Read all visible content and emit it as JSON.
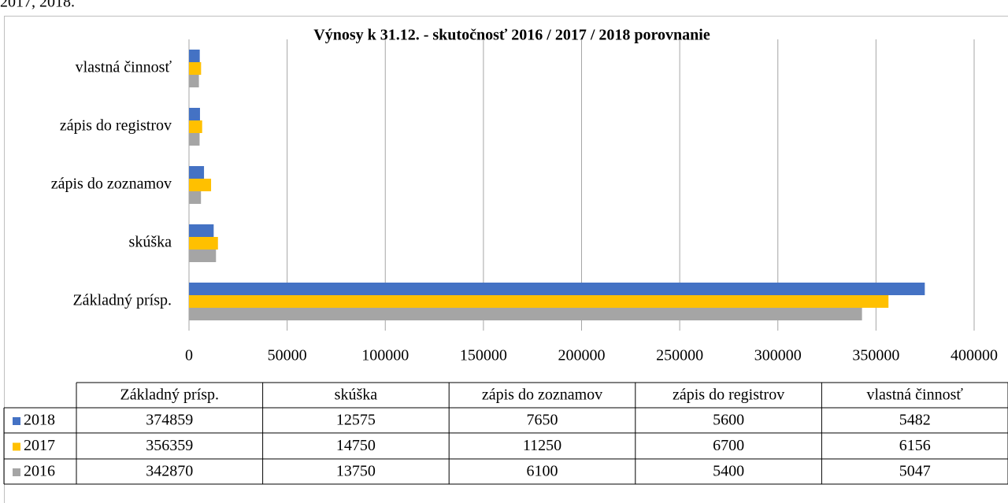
{
  "caption": "2017, 2018.",
  "chart_data": {
    "type": "bar",
    "orientation": "horizontal",
    "title": "Výnosy k 31.12. - skutočnosť 2016 / 2017 / 2018  porovnanie",
    "categories": [
      "Základný prísp.",
      "skúška",
      "zápis do zoznamov",
      "zápis do registrov",
      "vlastná činnosť"
    ],
    "series": [
      {
        "name": "2018",
        "color": "#4472c4",
        "values": [
          374859,
          12575,
          7650,
          5600,
          5482
        ]
      },
      {
        "name": "2017",
        "color": "#ffc000",
        "values": [
          356359,
          14750,
          11250,
          6700,
          6156
        ]
      },
      {
        "name": "2016",
        "color": "#a5a5a5",
        "values": [
          342870,
          13750,
          6100,
          5400,
          5047
        ]
      }
    ],
    "xlim": [
      0,
      400000
    ],
    "xticks": [
      0,
      50000,
      100000,
      150000,
      200000,
      250000,
      300000,
      350000,
      400000
    ],
    "grid": true,
    "data_table": true
  }
}
